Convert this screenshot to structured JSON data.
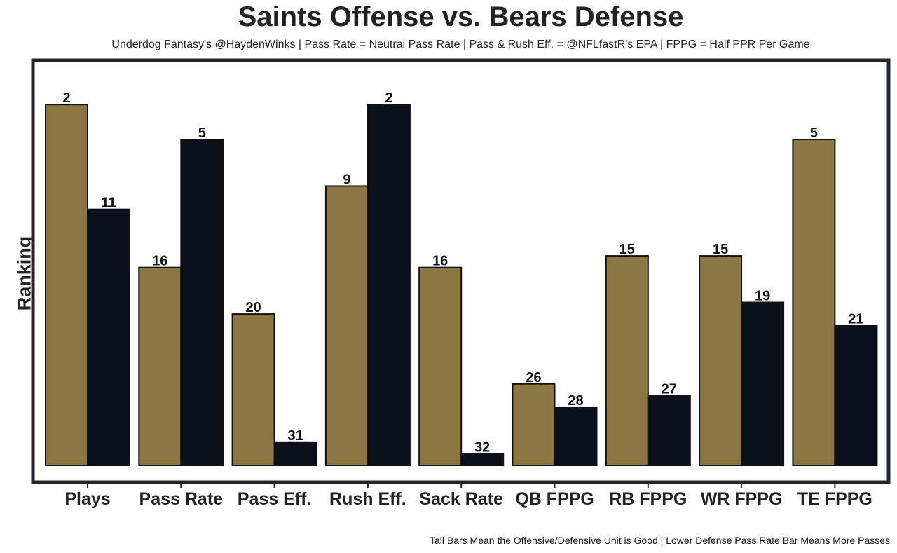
{
  "chart_data": {
    "type": "bar",
    "title": "Saints Offense vs. Bears Defense",
    "subtitle": "Underdog Fantasy's @HaydenWinks | Pass Rate = Neutral Pass Rate | Pass & Rush Eff. = @NFLfastR's EPA | FPPG = Half PPR Per Game",
    "footnote": "Tall Bars Mean the Offensive/Defensive Unit is Good | Lower Defense Pass Rate Bar Means More Passes",
    "xlabel": "",
    "ylabel": "Ranking",
    "ylim": [
      33,
      0
    ],
    "grid": false,
    "categories": [
      "Plays",
      "Pass Rate",
      "Pass Eff.",
      "Rush Eff.",
      "Sack Rate",
      "QB FPPG",
      "RB FPPG",
      "WR FPPG",
      "TE FPPG"
    ],
    "series": [
      {
        "name": "Saints Offense",
        "color": "#8c7644",
        "values": [
          2,
          16,
          20,
          9,
          16,
          26,
          15,
          15,
          5
        ],
        "labels": [
          "2",
          "16",
          "20",
          "9",
          "16",
          "26",
          "15",
          "15",
          "5"
        ]
      },
      {
        "name": "Bears Defense",
        "color": "#0b111c",
        "values": [
          11,
          5,
          31,
          2,
          32,
          28,
          27,
          19,
          21
        ],
        "labels": [
          "11",
          "5",
          "31",
          "2",
          "32",
          "28",
          "27",
          "19",
          "21"
        ]
      }
    ],
    "frame_color": "#20252e"
  }
}
